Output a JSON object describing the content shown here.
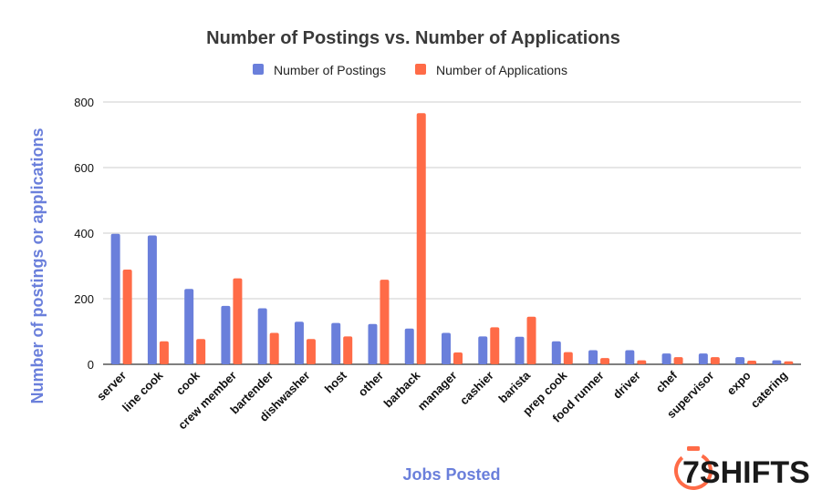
{
  "chart_data": {
    "type": "bar",
    "title": "Number of Postings vs. Number of Applications",
    "xlabel": "Jobs Posted",
    "ylabel": "Number of postings or applications",
    "ylim": [
      0,
      800
    ],
    "yticks": [
      0,
      200,
      400,
      600,
      800
    ],
    "grid": true,
    "legend_position": "top",
    "categories": [
      "server",
      "line cook",
      "cook",
      "crew member",
      "bartender",
      "dishwasher",
      "host",
      "other",
      "barback",
      "manager",
      "cashier",
      "barista",
      "prep cook",
      "food runner",
      "driver",
      "chef",
      "supervisor",
      "expo",
      "catering"
    ],
    "series": [
      {
        "name": "Number of Postings",
        "color": "#6a7fdb",
        "values": [
          398,
          393,
          230,
          178,
          171,
          130,
          126,
          123,
          109,
          96,
          85,
          84,
          70,
          43,
          43,
          33,
          33,
          22,
          12
        ]
      },
      {
        "name": "Number of Applications",
        "color": "#ff6b47",
        "values": [
          289,
          70,
          77,
          262,
          96,
          77,
          85,
          258,
          766,
          36,
          113,
          145,
          37,
          19,
          12,
          22,
          22,
          11,
          9
        ]
      }
    ],
    "axis_title_color": "#6a7fdb"
  },
  "logo": {
    "text": "7SHIFTS"
  }
}
